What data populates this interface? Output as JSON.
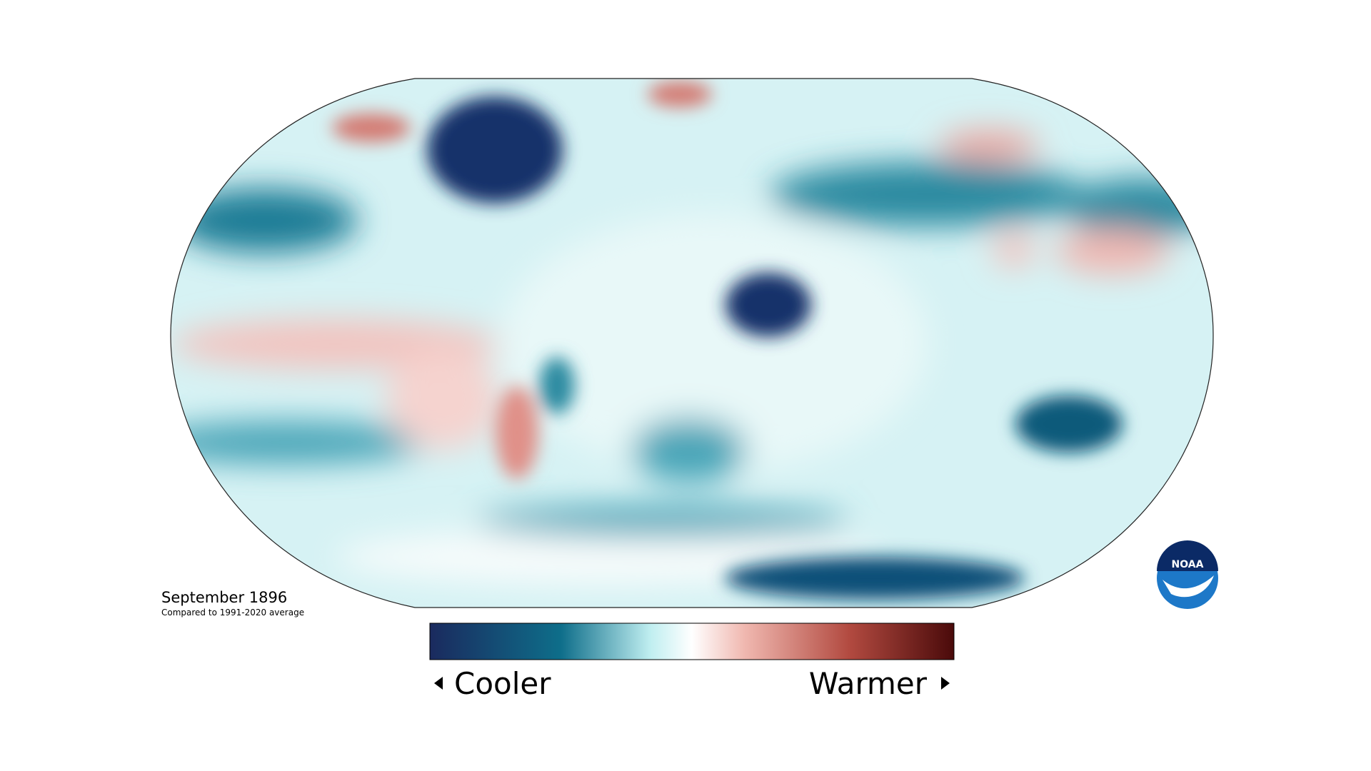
{
  "map": {
    "title": "September 1896",
    "subtitle": "Compared to 1991-2020 average"
  },
  "legend": {
    "low_label": "Cooler",
    "high_label": "Warmer"
  },
  "logo": {
    "text": "NOAA"
  }
}
